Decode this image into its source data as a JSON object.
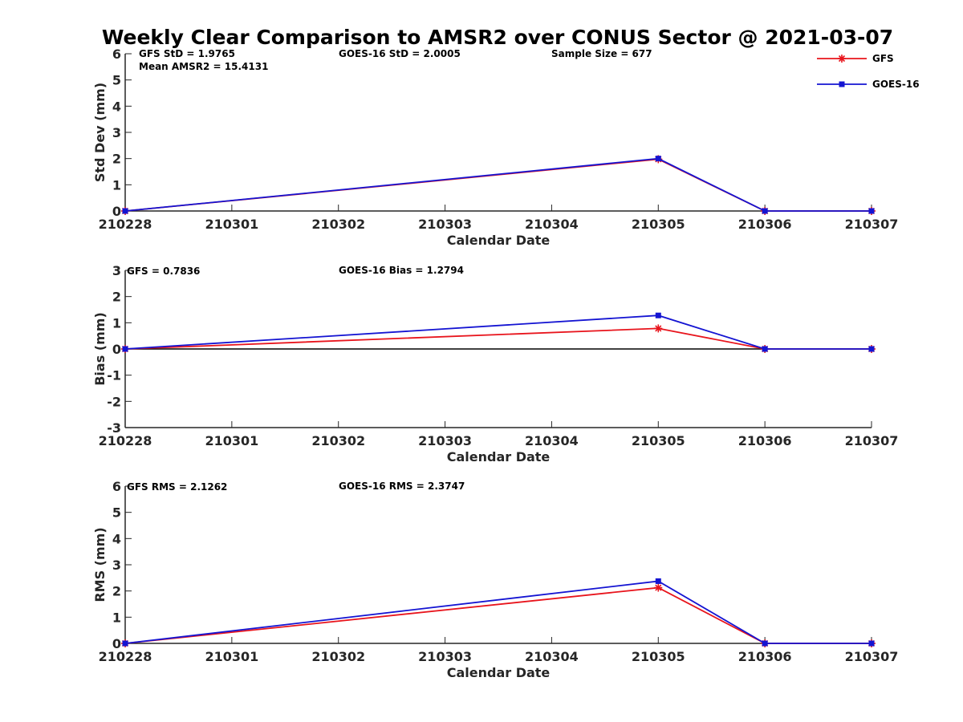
{
  "title": "Weekly Clear Comparison to AMSR2 over CONUS Sector @ 2021-03-07",
  "colors": {
    "GFS": "#e8141c",
    "GOES-16": "#1414d2",
    "axis": "#262626",
    "zero_line": "#000000"
  },
  "legend": {
    "placement": "top-right",
    "entries": [
      {
        "label": "GFS",
        "marker": "asterisk",
        "color": "#e8141c"
      },
      {
        "label": "GOES-16",
        "marker": "square",
        "color": "#1414d2"
      }
    ]
  },
  "chart_data": [
    {
      "type": "line",
      "categories": [
        "210228",
        "210301",
        "210302",
        "210303",
        "210304",
        "210305",
        "210306",
        "210307"
      ],
      "xlabel": "Calendar Date",
      "ylabel": "Std Dev (mm)",
      "ylim": [
        0,
        6
      ],
      "yticks": [
        0,
        1,
        2,
        3,
        4,
        5,
        6
      ],
      "zero_line": false,
      "series": [
        {
          "name": "GFS",
          "x": [
            "210228",
            "210305",
            "210306",
            "210307"
          ],
          "values": [
            0,
            1.9765,
            0,
            0
          ]
        },
        {
          "name": "GOES-16",
          "x": [
            "210228",
            "210305",
            "210306",
            "210307"
          ],
          "values": [
            0,
            2.0005,
            0,
            0
          ]
        }
      ],
      "annotations": [
        {
          "text": "GFS StD = 1.9765",
          "anchor": "top-left"
        },
        {
          "text": "Mean AMSR2 = 15.4131",
          "anchor": "top-left-second-line"
        },
        {
          "text": "GOES-16 StD = 2.0005",
          "anchor": "top-center"
        },
        {
          "text": "Sample Size = 677",
          "anchor": "top-right"
        }
      ]
    },
    {
      "type": "line",
      "categories": [
        "210228",
        "210301",
        "210302",
        "210303",
        "210304",
        "210305",
        "210306",
        "210307"
      ],
      "xlabel": "Calendar Date",
      "ylabel": "Bias (mm)",
      "ylim": [
        -3,
        3
      ],
      "yticks": [
        -3,
        -2,
        -1,
        0,
        1,
        2,
        3
      ],
      "zero_line": true,
      "series": [
        {
          "name": "GFS",
          "x": [
            "210228",
            "210305",
            "210306",
            "210307"
          ],
          "values": [
            0,
            0.7836,
            0,
            0
          ]
        },
        {
          "name": "GOES-16",
          "x": [
            "210228",
            "210305",
            "210306",
            "210307"
          ],
          "values": [
            0,
            1.2794,
            0,
            0
          ]
        }
      ],
      "annotations": [
        {
          "text": "GFS = 0.7836",
          "anchor": "top-left"
        },
        {
          "text": "GOES-16 Bias  = 1.2794",
          "anchor": "top-center"
        }
      ]
    },
    {
      "type": "line",
      "categories": [
        "210228",
        "210301",
        "210302",
        "210303",
        "210304",
        "210305",
        "210306",
        "210307"
      ],
      "xlabel": "Calendar Date",
      "ylabel": "RMS (mm)",
      "ylim": [
        0,
        6
      ],
      "yticks": [
        0,
        1,
        2,
        3,
        4,
        5,
        6
      ],
      "zero_line": false,
      "series": [
        {
          "name": "GFS",
          "x": [
            "210228",
            "210305",
            "210306",
            "210307"
          ],
          "values": [
            0,
            2.1262,
            0,
            0
          ]
        },
        {
          "name": "GOES-16",
          "x": [
            "210228",
            "210305",
            "210306",
            "210307"
          ],
          "values": [
            0,
            2.3747,
            0,
            0
          ]
        }
      ],
      "annotations": [
        {
          "text": "GFS RMS = 2.1262",
          "anchor": "top-left"
        },
        {
          "text": "GOES-16 RMS = 2.3747",
          "anchor": "top-center"
        }
      ]
    }
  ]
}
